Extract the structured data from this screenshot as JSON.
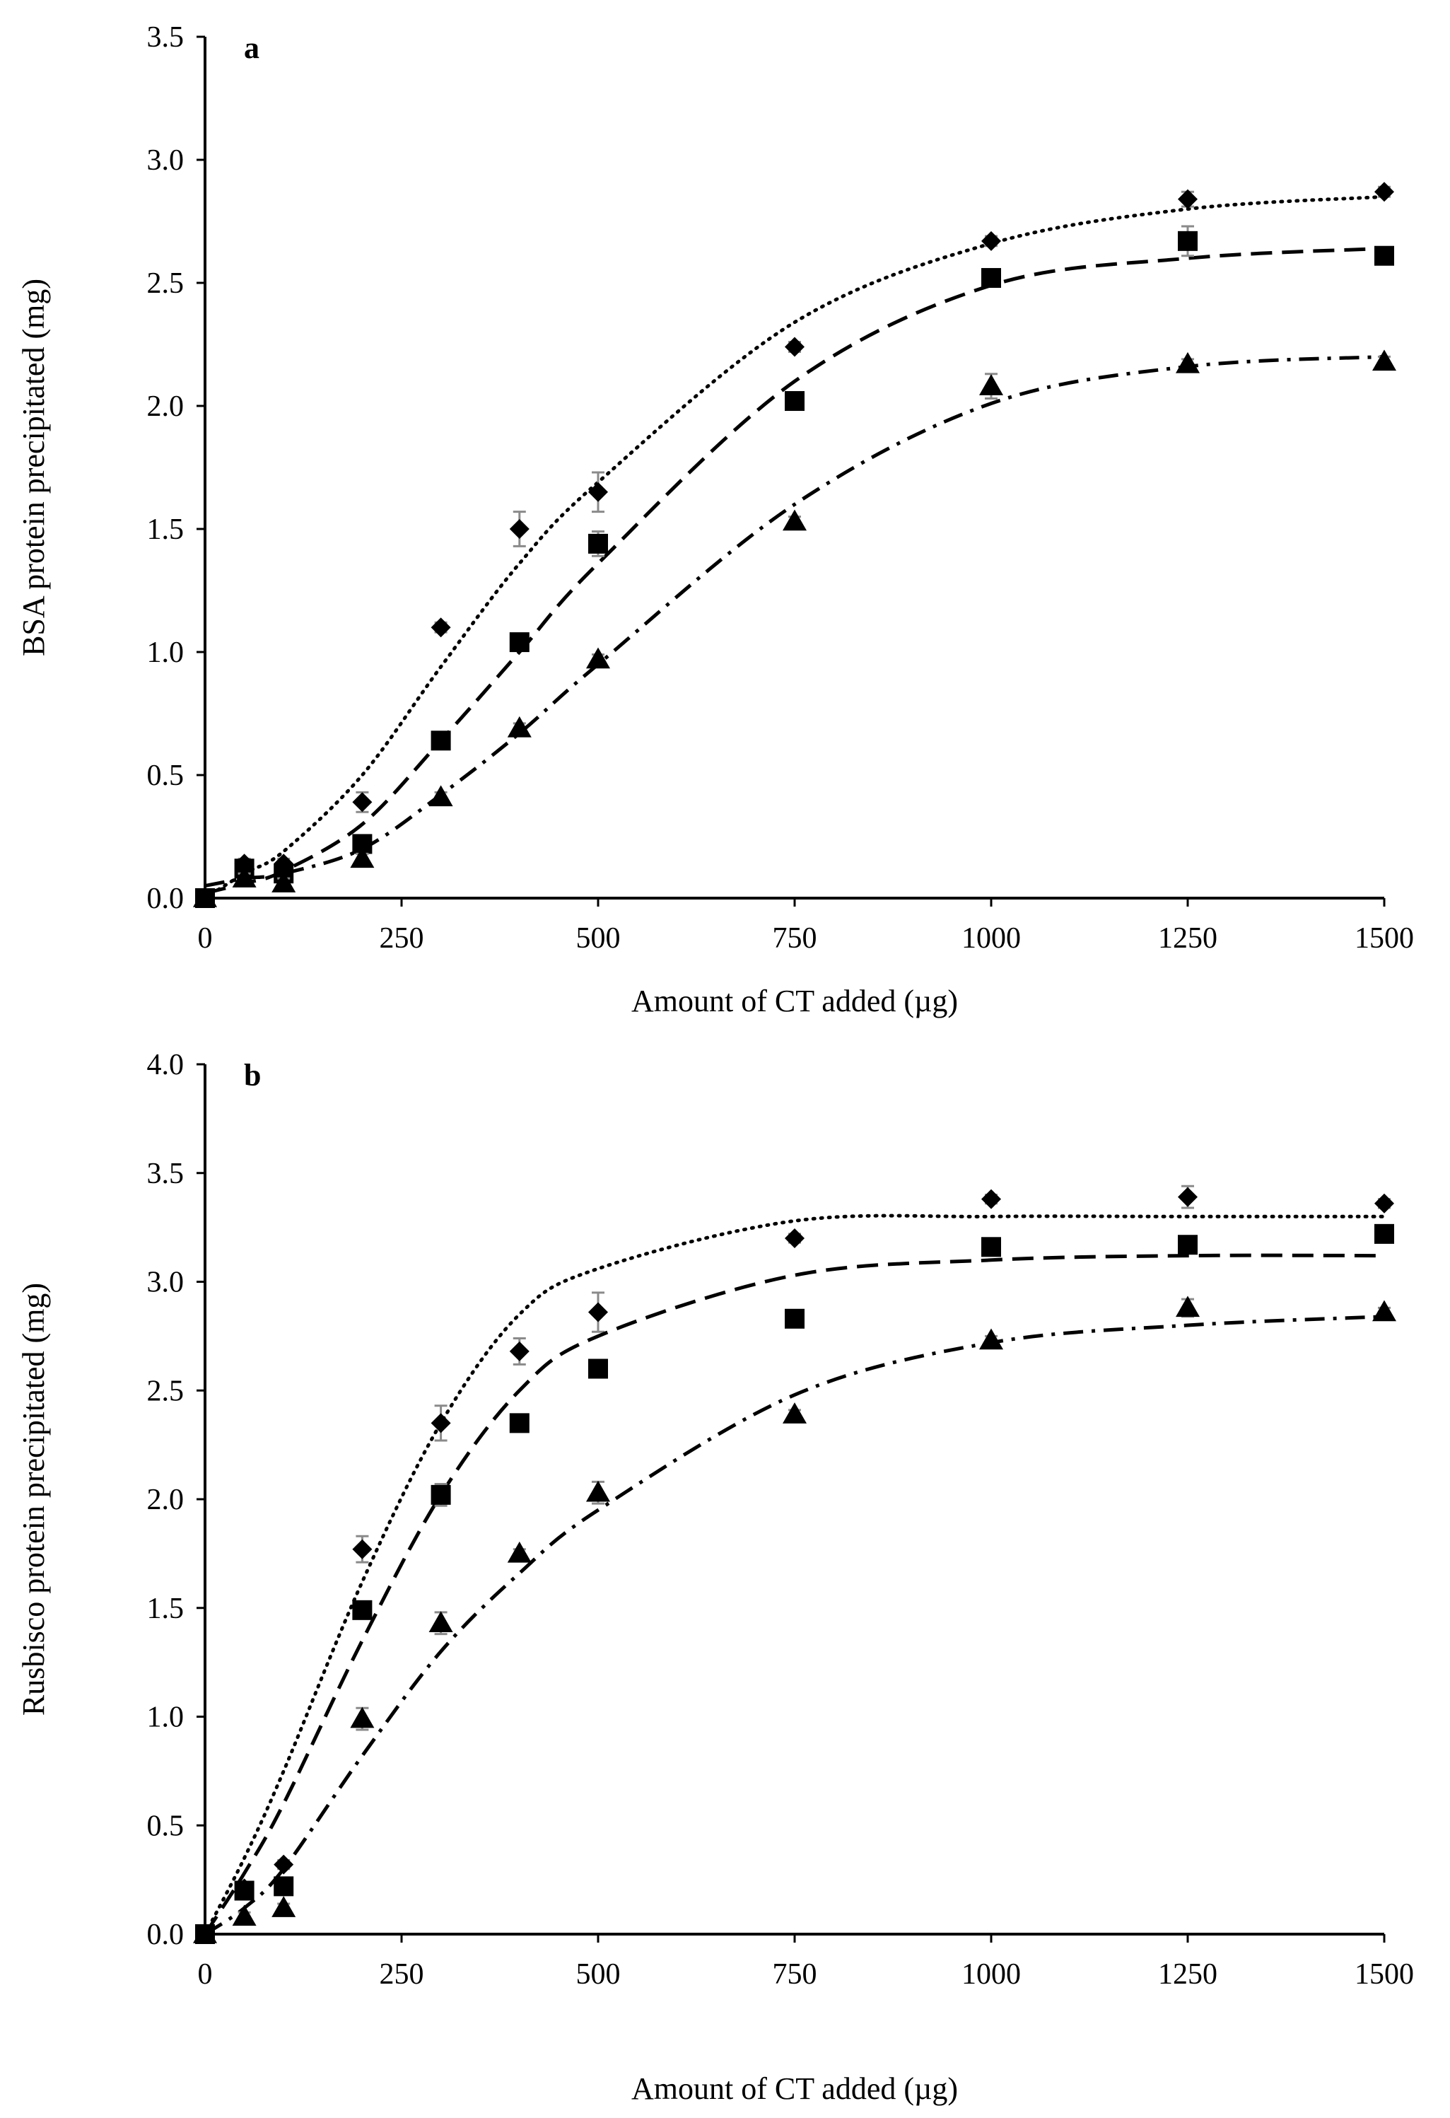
{
  "chart_data": [
    {
      "id": "a",
      "type": "scatter",
      "panel_label": "a",
      "title": "",
      "xlabel": "Amount of CT added (µg)",
      "ylabel": "BSA protein precipitated (mg)",
      "xlim": [
        0,
        1500
      ],
      "ylim": [
        0,
        3.5
      ],
      "xticks": [
        0,
        250,
        500,
        750,
        1000,
        1250,
        1500
      ],
      "yticks": [
        "0.0",
        "0.5",
        "1.0",
        "1.5",
        "2.0",
        "2.5",
        "3.0",
        "3.5"
      ],
      "x": [
        0,
        50,
        100,
        200,
        300,
        400,
        500,
        750,
        1000,
        1250,
        1500
      ],
      "series": [
        {
          "name": "diamond",
          "marker": "diamond",
          "line": "dotted",
          "values": [
            0.0,
            0.14,
            0.14,
            0.39,
            1.1,
            1.5,
            1.65,
            2.24,
            2.67,
            2.84,
            2.87
          ],
          "errors": [
            0,
            0.02,
            0.02,
            0.04,
            0.02,
            0.07,
            0.08,
            0.02,
            0.02,
            0.03,
            0.02
          ],
          "fit": [
            0.0,
            0.1,
            0.19,
            0.5,
            0.94,
            1.36,
            1.69,
            2.34,
            2.66,
            2.8,
            2.85
          ]
        },
        {
          "name": "square",
          "marker": "square",
          "line": "dashed",
          "values": [
            0.0,
            0.12,
            0.1,
            0.22,
            0.64,
            1.04,
            1.44,
            2.02,
            2.52,
            2.67,
            2.61
          ],
          "errors": [
            0,
            0.02,
            0.02,
            0.02,
            0.02,
            0.02,
            0.05,
            0.02,
            0.02,
            0.06,
            0.02
          ],
          "fit": [
            0.02,
            0.06,
            0.11,
            0.3,
            0.64,
            1.0,
            1.36,
            2.1,
            2.49,
            2.6,
            2.64
          ]
        },
        {
          "name": "triangle",
          "marker": "triangle",
          "line": "dash-dot",
          "values": [
            0.0,
            0.08,
            0.06,
            0.16,
            0.41,
            0.69,
            0.97,
            1.53,
            2.08,
            2.17,
            2.18
          ],
          "errors": [
            0,
            0.02,
            0.02,
            0.02,
            0.02,
            0.02,
            0.02,
            0.02,
            0.05,
            0.02,
            0.02
          ],
          "fit": [
            0.05,
            0.08,
            0.1,
            0.2,
            0.42,
            0.67,
            0.95,
            1.6,
            2.01,
            2.16,
            2.2
          ]
        }
      ]
    },
    {
      "id": "b",
      "type": "scatter",
      "panel_label": "b",
      "title": "",
      "xlabel": "Amount of CT added (µg)",
      "ylabel": "Rusbisco protein precipitated (mg)",
      "xlim": [
        0,
        1500
      ],
      "ylim": [
        0,
        4.0
      ],
      "xticks": [
        0,
        250,
        500,
        750,
        1000,
        1250,
        1500
      ],
      "yticks": [
        "0.0",
        "0.5",
        "1.0",
        "1.5",
        "2.0",
        "2.5",
        "3.0",
        "3.5",
        "4.0"
      ],
      "x": [
        0,
        50,
        100,
        200,
        300,
        400,
        500,
        750,
        1000,
        1250,
        1500
      ],
      "series": [
        {
          "name": "diamond",
          "marker": "diamond",
          "line": "dotted",
          "values": [
            0.0,
            0.21,
            0.32,
            1.77,
            2.35,
            2.68,
            2.86,
            3.2,
            3.38,
            3.39,
            3.36
          ],
          "errors": [
            0,
            0.02,
            0.02,
            0.06,
            0.08,
            0.06,
            0.09,
            0.02,
            0.02,
            0.05,
            0.02
          ],
          "fit": [
            0.0,
            0.35,
            0.75,
            1.62,
            2.35,
            2.85,
            3.06,
            3.28,
            3.3,
            3.3,
            3.3
          ]
        },
        {
          "name": "square",
          "marker": "square",
          "line": "dashed",
          "values": [
            0.0,
            0.2,
            0.22,
            1.49,
            2.02,
            2.35,
            2.6,
            2.83,
            3.16,
            3.17,
            3.22
          ],
          "errors": [
            0,
            0.02,
            0.02,
            0.02,
            0.05,
            0.02,
            0.02,
            0.02,
            0.02,
            0.02,
            0.02
          ],
          "fit": [
            0.0,
            0.28,
            0.6,
            1.35,
            2.02,
            2.5,
            2.75,
            3.03,
            3.1,
            3.12,
            3.12
          ]
        },
        {
          "name": "triangle",
          "marker": "triangle",
          "line": "dash-dot",
          "values": [
            0.0,
            0.08,
            0.12,
            0.99,
            1.43,
            1.75,
            2.03,
            2.39,
            2.73,
            2.88,
            2.86
          ],
          "errors": [
            0,
            0.02,
            0.02,
            0.05,
            0.05,
            0.02,
            0.05,
            0.02,
            0.02,
            0.04,
            0.02
          ],
          "fit": [
            0.0,
            0.12,
            0.3,
            0.82,
            1.3,
            1.66,
            1.95,
            2.48,
            2.72,
            2.8,
            2.84
          ]
        }
      ]
    }
  ]
}
